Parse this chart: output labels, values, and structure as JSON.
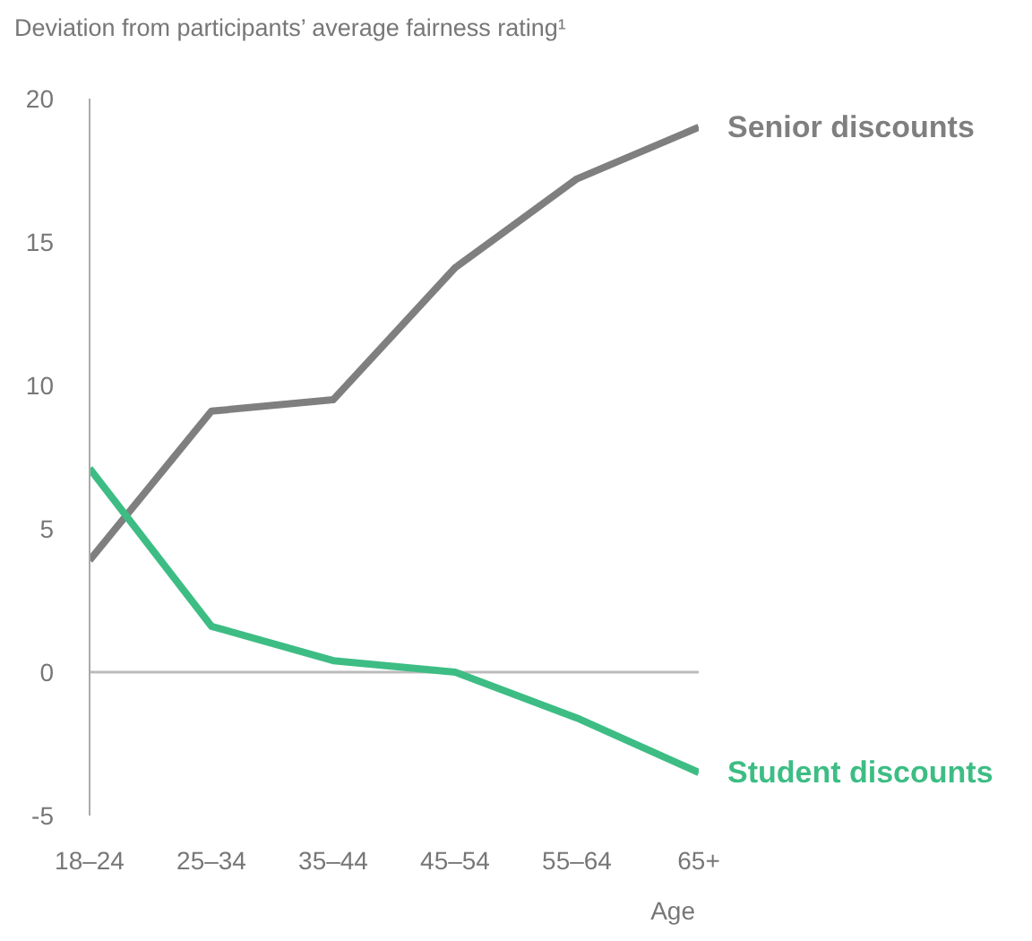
{
  "chart_data": {
    "type": "line",
    "title": "Deviation from participants’ average fairness rating¹",
    "xlabel": "Age",
    "categories": [
      "18–24",
      "25–34",
      "35–44",
      "45–54",
      "55–64",
      "65+"
    ],
    "series": [
      {
        "name": "Senior discounts",
        "color": "#7f7f7f",
        "values": [
          3.9,
          9.1,
          9.5,
          14.1,
          17.2,
          19
        ]
      },
      {
        "name": "Student discounts",
        "color": "#3dbd84",
        "values": [
          7.1,
          1.6,
          0.4,
          0,
          -1.6,
          -3.5
        ]
      }
    ],
    "ylim": [
      -5,
      20
    ],
    "yticks": [
      -5,
      0,
      5,
      10,
      15,
      20
    ],
    "grid": false,
    "legend": false,
    "marker": "none",
    "ref_lines": [
      {
        "axis": "y",
        "value": 0
      }
    ]
  }
}
